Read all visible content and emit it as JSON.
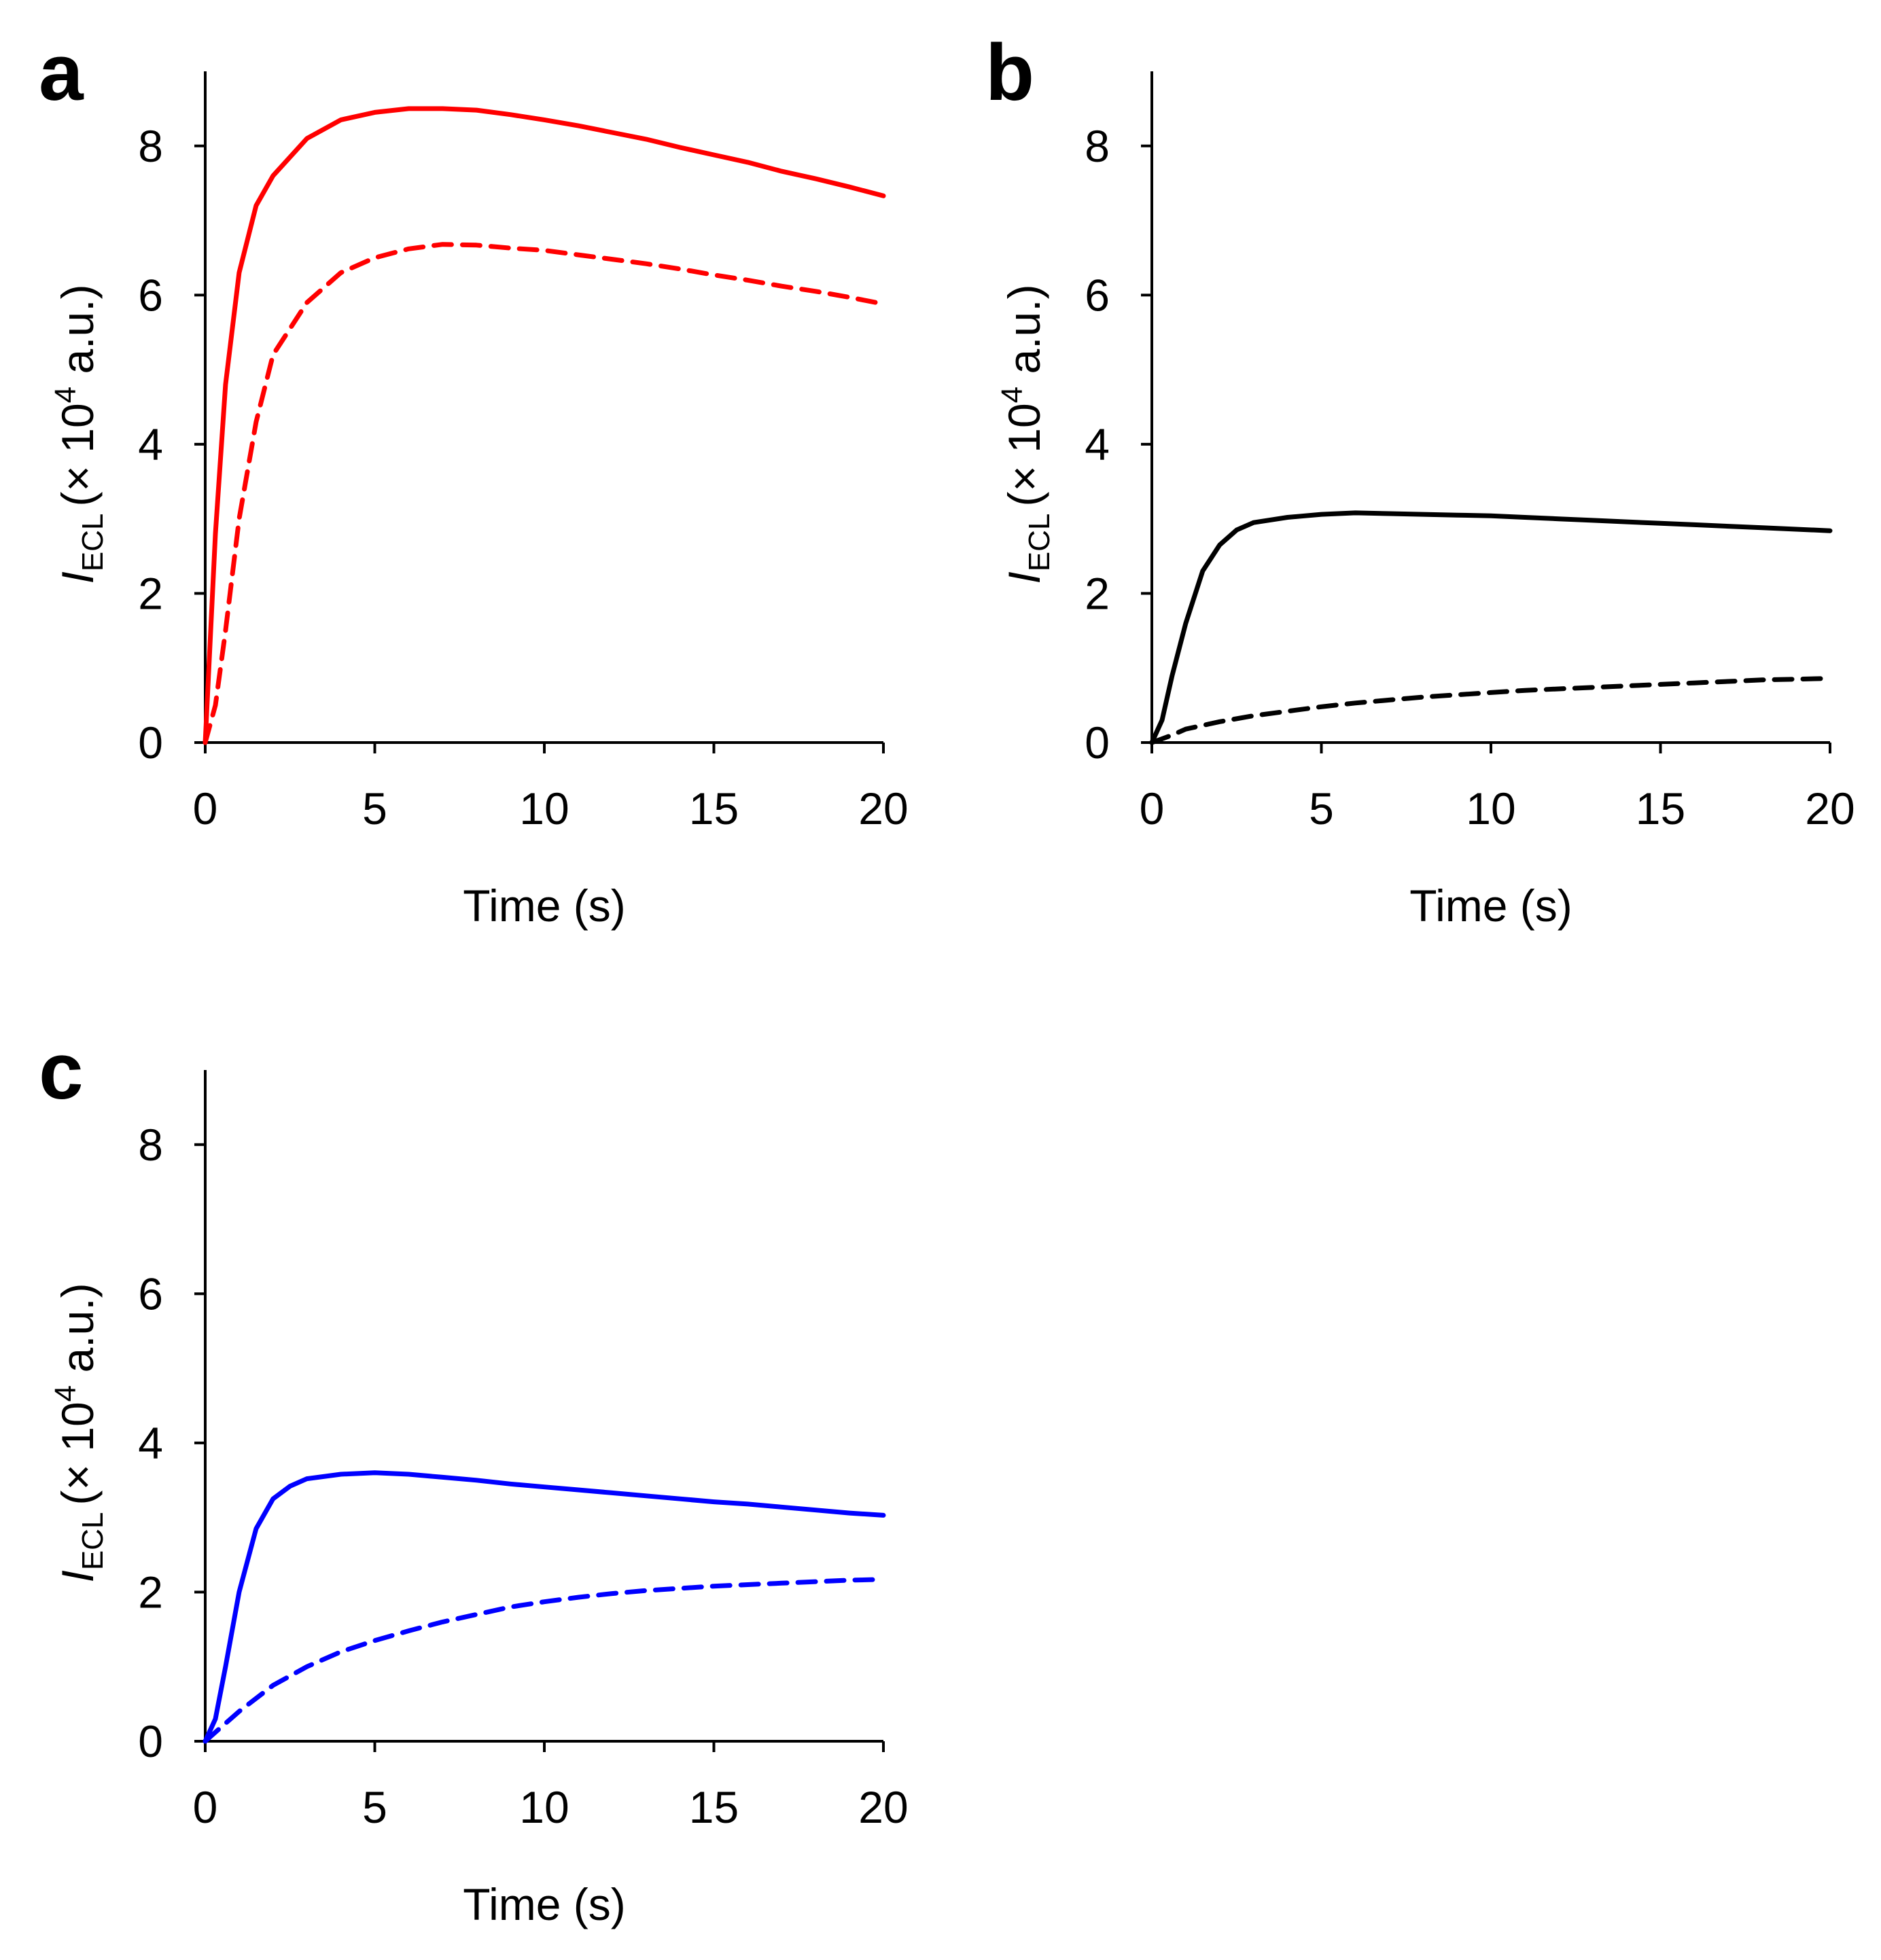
{
  "chart_data": [
    {
      "type": "line",
      "panel": "a",
      "xlabel": "Time (s)",
      "ylabel": {
        "symbol": "I",
        "subscript": "ECL",
        "unit": "(× 10",
        "exponent": "4",
        "unit_end": " a.u.)"
      },
      "xlim": [
        0,
        20
      ],
      "ylim": [
        0,
        9
      ],
      "xticks": [
        "0",
        "5",
        "10",
        "15",
        "20"
      ],
      "yticks": [
        "0",
        "2",
        "4",
        "6",
        "8"
      ],
      "series": [
        {
          "style": "solid",
          "color": "#ff0000",
          "x": [
            0,
            0.3,
            0.6,
            1,
            1.5,
            2,
            3,
            4,
            5,
            6,
            7,
            8,
            9,
            10,
            11,
            12,
            13,
            14,
            15,
            16,
            17,
            18,
            19,
            20
          ],
          "y": [
            0,
            2.8,
            4.8,
            6.3,
            7.2,
            7.6,
            8.1,
            8.35,
            8.45,
            8.5,
            8.5,
            8.48,
            8.42,
            8.35,
            8.27,
            8.18,
            8.09,
            7.98,
            7.88,
            7.78,
            7.66,
            7.56,
            7.45,
            7.33
          ]
        },
        {
          "style": "dashed",
          "color": "#ff0000",
          "x": [
            0,
            0.3,
            0.6,
            1,
            1.5,
            2,
            3,
            4,
            5,
            6,
            7,
            8,
            9,
            10,
            11,
            12,
            13,
            14,
            15,
            16,
            17,
            18,
            19,
            20
          ],
          "y": [
            0,
            0.5,
            1.5,
            3.0,
            4.3,
            5.2,
            5.9,
            6.3,
            6.5,
            6.62,
            6.68,
            6.67,
            6.63,
            6.6,
            6.54,
            6.48,
            6.42,
            6.35,
            6.27,
            6.2,
            6.12,
            6.05,
            5.97,
            5.88
          ]
        }
      ]
    },
    {
      "type": "line",
      "panel": "b",
      "xlabel": "Time (s)",
      "ylabel": {
        "symbol": "I",
        "subscript": "ECL",
        "unit": "(× 10",
        "exponent": "4",
        "unit_end": " a.u.)"
      },
      "xlim": [
        0,
        20
      ],
      "ylim": [
        0,
        9
      ],
      "xticks": [
        "0",
        "5",
        "10",
        "15",
        "20"
      ],
      "yticks": [
        "0",
        "2",
        "4",
        "6",
        "8"
      ],
      "series": [
        {
          "style": "solid",
          "color": "#000000",
          "x": [
            0,
            0.3,
            0.6,
            1,
            1.5,
            2,
            2.5,
            3,
            4,
            5,
            6,
            7,
            8,
            9,
            10,
            11,
            12,
            13,
            14,
            15,
            16,
            17,
            18,
            19,
            20
          ],
          "y": [
            0,
            0.3,
            0.9,
            1.6,
            2.3,
            2.65,
            2.85,
            2.95,
            3.02,
            3.06,
            3.08,
            3.07,
            3.06,
            3.05,
            3.04,
            3.02,
            3.0,
            2.98,
            2.96,
            2.94,
            2.92,
            2.9,
            2.88,
            2.86,
            2.84
          ]
        },
        {
          "style": "dashed",
          "color": "#000000",
          "x": [
            0,
            0.3,
            0.6,
            1,
            2,
            3,
            4,
            5,
            6,
            7,
            8,
            9,
            10,
            11,
            12,
            13,
            14,
            15,
            16,
            17,
            18,
            19,
            20
          ],
          "y": [
            0,
            0.05,
            0.1,
            0.18,
            0.28,
            0.36,
            0.42,
            0.48,
            0.53,
            0.57,
            0.61,
            0.64,
            0.67,
            0.7,
            0.72,
            0.74,
            0.76,
            0.78,
            0.8,
            0.82,
            0.84,
            0.85,
            0.86
          ]
        }
      ]
    },
    {
      "type": "line",
      "panel": "c",
      "xlabel": "Time (s)",
      "ylabel": {
        "symbol": "I",
        "subscript": "ECL",
        "unit": "(× 10",
        "exponent": "4",
        "unit_end": " a.u.)"
      },
      "xlim": [
        0,
        20
      ],
      "ylim": [
        0,
        9
      ],
      "xticks": [
        "0",
        "5",
        "10",
        "15",
        "20"
      ],
      "yticks": [
        "0",
        "2",
        "4",
        "6",
        "8"
      ],
      "series": [
        {
          "style": "solid",
          "color": "#0000ff",
          "x": [
            0,
            0.3,
            0.6,
            1,
            1.5,
            2,
            2.5,
            3,
            4,
            5,
            6,
            7,
            8,
            9,
            10,
            11,
            12,
            13,
            14,
            15,
            16,
            17,
            18,
            19,
            20
          ],
          "y": [
            0,
            0.3,
            1.0,
            2.0,
            2.85,
            3.25,
            3.42,
            3.52,
            3.58,
            3.6,
            3.58,
            3.54,
            3.5,
            3.45,
            3.41,
            3.37,
            3.33,
            3.29,
            3.25,
            3.21,
            3.18,
            3.14,
            3.1,
            3.06,
            3.03
          ]
        },
        {
          "style": "dashed",
          "color": "#0000ff",
          "x": [
            0,
            0.5,
            1,
            2,
            3,
            4,
            5,
            6,
            7,
            8,
            9,
            10,
            11,
            12,
            13,
            14,
            15,
            16,
            17,
            18,
            19,
            20
          ],
          "y": [
            0,
            0.2,
            0.4,
            0.75,
            1.0,
            1.2,
            1.35,
            1.48,
            1.6,
            1.7,
            1.8,
            1.87,
            1.93,
            1.98,
            2.02,
            2.05,
            2.08,
            2.1,
            2.12,
            2.14,
            2.16,
            2.17
          ]
        }
      ]
    }
  ]
}
